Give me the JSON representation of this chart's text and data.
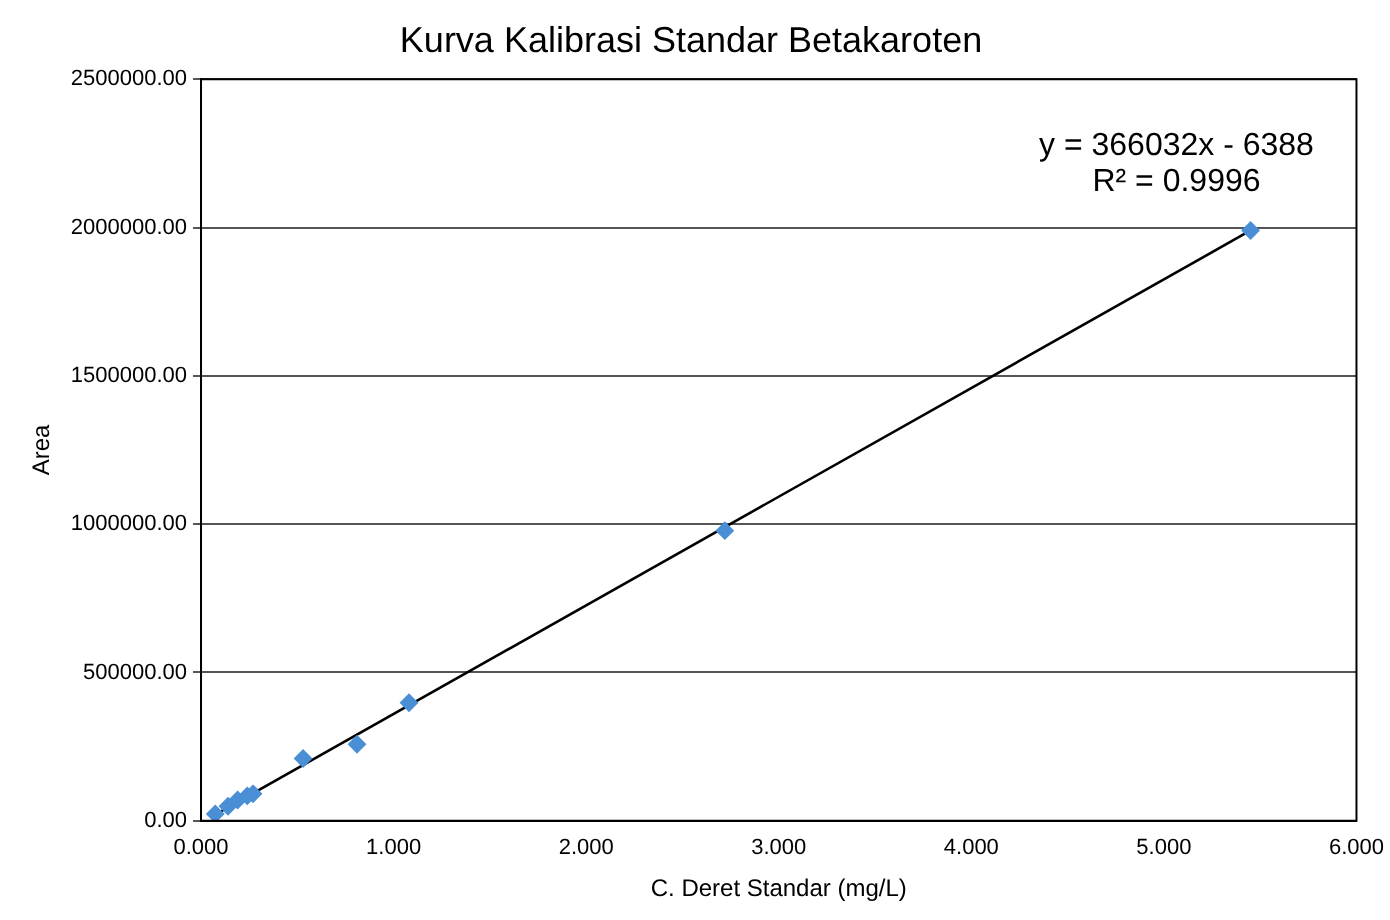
{
  "chart_data": {
    "type": "scatter",
    "title": "Kurva Kalibrasi Standar Betakaroten",
    "xlabel": "C. Deret Standar (mg/L)",
    "ylabel": "Area",
    "series": [
      {
        "type": "scatter",
        "marker": "diamond",
        "color": "#4a8fd6",
        "x": [
          0.074,
          0.14,
          0.19,
          0.24,
          0.27,
          0.53,
          0.81,
          1.08,
          2.72,
          5.45
        ],
        "values": [
          23000,
          49000,
          70000,
          84000,
          91000,
          210000,
          258000,
          398000,
          978000,
          1990000
        ]
      },
      {
        "type": "line",
        "marker": "none",
        "color": "#000000",
        "x": [
          0.074,
          5.45
        ],
        "values": [
          21000,
          1990000
        ]
      }
    ],
    "xlim": [
      0,
      6
    ],
    "xticks": [
      {
        "value": 0,
        "label": "0.000"
      },
      {
        "value": 1,
        "label": "1.000"
      },
      {
        "value": 2,
        "label": "2.000"
      },
      {
        "value": 3,
        "label": "3.000"
      },
      {
        "value": 4,
        "label": "4.000"
      },
      {
        "value": 5,
        "label": "5.000"
      },
      {
        "value": 6,
        "label": "6.000"
      }
    ],
    "ylim": [
      0,
      2500000
    ],
    "yticks": [
      {
        "value": 0,
        "label": "0.00"
      },
      {
        "value": 500000,
        "label": "500000.00"
      },
      {
        "value": 1000000,
        "label": "1000000.00"
      },
      {
        "value": 1500000,
        "label": "1500000.00"
      },
      {
        "value": 2000000,
        "label": "2000000.00"
      },
      {
        "value": 2500000,
        "label": "2500000.00"
      }
    ],
    "grid": "y",
    "legend": false,
    "annotations": [
      "y = 366032x - 6388",
      "R² = 0.9996"
    ]
  }
}
